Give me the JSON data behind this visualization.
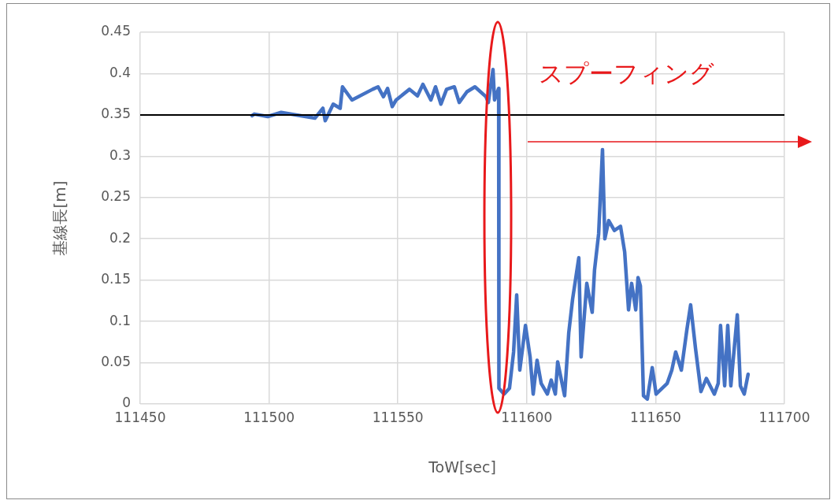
{
  "chart_data": {
    "type": "line",
    "xlabel": "ToW[sec]",
    "ylabel": "基線長[m]",
    "annotations": [
      "スプーフィング"
    ],
    "series": [
      {
        "color": "#4472c4",
        "x": [
          111493.4,
          111494.3,
          111499.5,
          111504.7,
          111517.8,
          111520.9,
          111521.8,
          111524.9,
          111527.6,
          111528.5,
          111532.2,
          111540.2,
          111542.3,
          111544.4,
          111546,
          111547.8,
          111549.3,
          111554.5,
          111557.6,
          111559.7,
          111562.8,
          111564.6,
          111566.7,
          111568.9,
          111571.9,
          111573.8,
          111576.8,
          111579.9,
          111584.2,
          111585.1,
          111586.9,
          111587.5,
          111589.1,
          111589.2,
          111591.2,
          111593.3,
          111594.9,
          111596.1,
          111597.3,
          111599.5,
          111601.3,
          111602.5,
          111604,
          111605.6,
          111608,
          111609.5,
          111611.1,
          111612,
          111614.7,
          111616.3,
          111617.8,
          111620.2,
          111621.1,
          111623.3,
          111625.4,
          111626.3,
          111627.9,
          111629.4,
          111630.3,
          111631.8,
          111634,
          111636.4,
          111638,
          111639.5,
          111640.7,
          111642.3,
          111643.2,
          111644.1,
          111645.3,
          111646.8,
          111648.7,
          111650.2,
          111654.5,
          111656.3,
          111657.8,
          111660,
          111662.1,
          111663.6,
          111665.5,
          111667.6,
          111669.7,
          111672.8,
          111674.3,
          111675.2,
          111676.8,
          111678,
          111679.2,
          111681.7,
          111682.9,
          111684.4,
          111685.9
        ],
        "values": [
          0.349,
          0.351,
          0.348,
          0.353,
          0.346,
          0.358,
          0.343,
          0.363,
          0.358,
          0.384,
          0.368,
          0.381,
          0.384,
          0.372,
          0.382,
          0.36,
          0.368,
          0.381,
          0.373,
          0.387,
          0.368,
          0.384,
          0.363,
          0.381,
          0.384,
          0.365,
          0.378,
          0.384,
          0.372,
          0.365,
          0.405,
          0.368,
          0.382,
          0.019,
          0.012,
          0.019,
          0.063,
          0.132,
          0.041,
          0.095,
          0.057,
          0.012,
          0.053,
          0.025,
          0.012,
          0.029,
          0.012,
          0.051,
          0.01,
          0.086,
          0.127,
          0.177,
          0.057,
          0.146,
          0.111,
          0.162,
          0.206,
          0.308,
          0.2,
          0.222,
          0.21,
          0.215,
          0.184,
          0.114,
          0.146,
          0.114,
          0.153,
          0.143,
          0.01,
          0.006,
          0.044,
          0.012,
          0.025,
          0.041,
          0.063,
          0.041,
          0.089,
          0.12,
          0.067,
          0.015,
          0.031,
          0.012,
          0.025,
          0.095,
          0.022,
          0.095,
          0.022,
          0.108,
          0.022,
          0.012,
          0.036
        ]
      }
    ],
    "xlim": [
      111450,
      111700
    ],
    "xticks": [
      111450,
      111500,
      111550,
      111600,
      111650,
      111700
    ],
    "ylim": [
      0,
      0.45
    ],
    "yticks": [
      0,
      0.05,
      0.1,
      0.15,
      0.2,
      0.25,
      0.3,
      0.35,
      0.4,
      0.45
    ],
    "ref_lines": [
      {
        "axis": "y",
        "value": 0.35,
        "color": "#000000"
      }
    ],
    "grid": true,
    "legend": false,
    "marker": "none",
    "line_style": "solid"
  }
}
